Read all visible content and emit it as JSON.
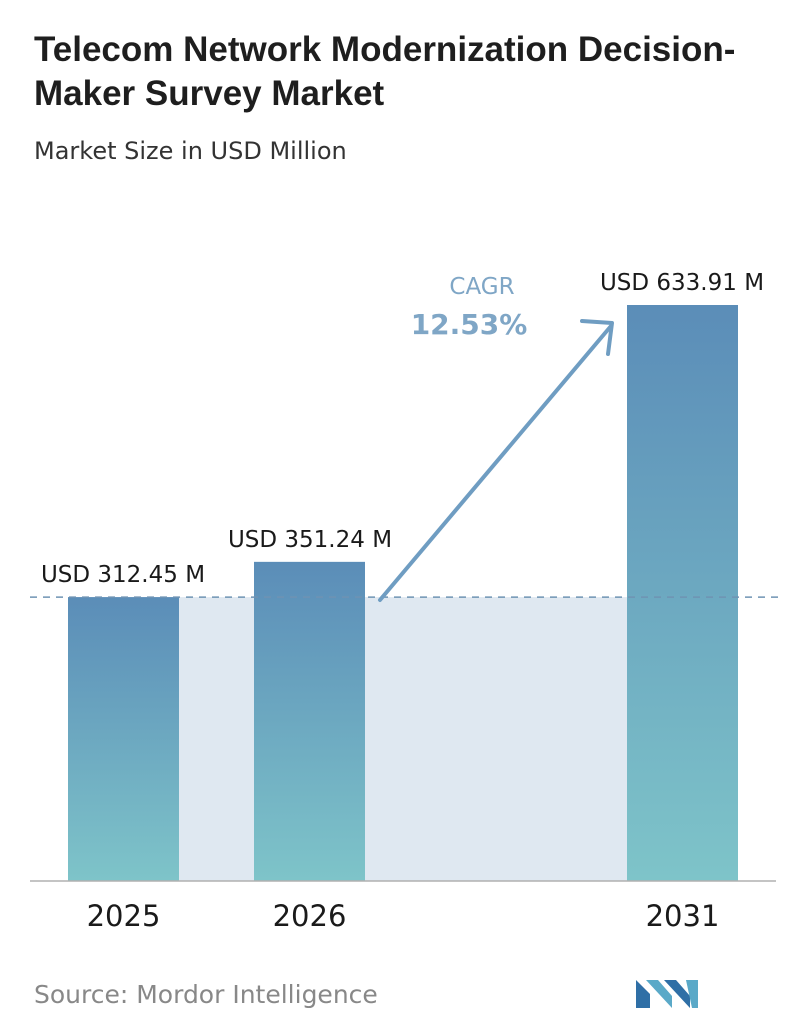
{
  "header": {
    "title": "Telecom Network Modernization Decision-Maker Survey Market",
    "subtitle": "Market Size in USD Million"
  },
  "chart_data": {
    "type": "bar",
    "categories": [
      "2025",
      "2026",
      "2031"
    ],
    "values": [
      312.45,
      351.24,
      633.91
    ],
    "value_labels": [
      "USD 312.45 M",
      "USD 351.24 M",
      "USD 633.91 M"
    ],
    "title": "Telecom Network Modernization Decision-Maker Survey Market",
    "subtitle": "Market Size in USD Million",
    "ylim": [
      0,
      633.91
    ],
    "grid": false,
    "baseline_reference": "dashed line at first value",
    "annotation": {
      "label": "CAGR",
      "value": "12.53%"
    },
    "colors": {
      "bar_top": "#5b8db8",
      "bar_bottom": "#7ec4c9",
      "band": "#dfe8f1",
      "arrow": "#6f9dc2",
      "dash": "#6f93b3"
    }
  },
  "footer": {
    "source": "Source: Mordor Intelligence",
    "logo_icon": "mordor-intelligence-logo-icon"
  }
}
